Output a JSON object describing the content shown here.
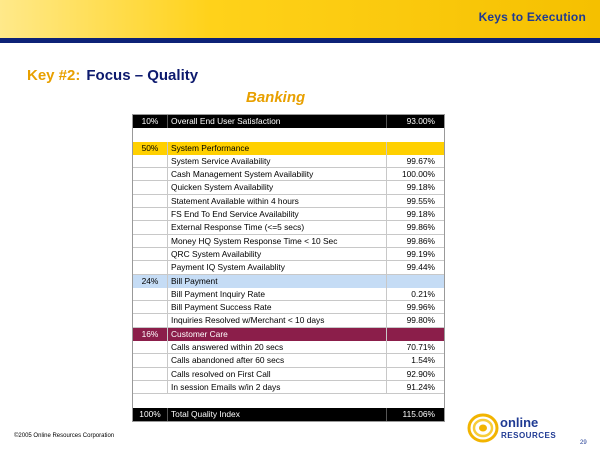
{
  "header": {
    "title": "Keys to Execution"
  },
  "heading": {
    "key": "Key #2:",
    "focus": "Focus – Quality"
  },
  "subheading": "Banking",
  "rows": [
    {
      "type": "dark",
      "weight": "10%",
      "label": "Overall End User Satisfaction",
      "value": "93.00%"
    },
    {
      "type": "blank",
      "weight": "",
      "label": "",
      "value": ""
    },
    {
      "type": "sp",
      "weight": "50%",
      "label": "System Performance",
      "value": ""
    },
    {
      "type": "item",
      "weight": "",
      "label": "System Service Availability",
      "value": "99.67%"
    },
    {
      "type": "item",
      "weight": "",
      "label": "Cash Management System Availability",
      "value": "100.00%"
    },
    {
      "type": "item",
      "weight": "",
      "label": "Quicken System Availability",
      "value": "99.18%"
    },
    {
      "type": "item",
      "weight": "",
      "label": "Statement Available within 4 hours",
      "value": "99.55%"
    },
    {
      "type": "item",
      "weight": "",
      "label": "FS End To End Service Availability",
      "value": "99.18%"
    },
    {
      "type": "item",
      "weight": "",
      "label": "External Response Time (<=5 secs)",
      "value": "99.86%"
    },
    {
      "type": "item",
      "weight": "",
      "label": "Money HQ System Response Time < 10 Sec",
      "value": "99.86%"
    },
    {
      "type": "item",
      "weight": "",
      "label": "QRC System Availability",
      "value": "99.19%"
    },
    {
      "type": "item",
      "weight": "",
      "label": "Payment IQ System Availablity",
      "value": "99.44%"
    },
    {
      "type": "bp",
      "weight": "24%",
      "label": "Bill Payment",
      "value": ""
    },
    {
      "type": "item",
      "weight": "",
      "label": "Bill Payment Inquiry Rate",
      "value": "0.21%"
    },
    {
      "type": "item",
      "weight": "",
      "label": "Bill Payment Success Rate",
      "value": "99.96%"
    },
    {
      "type": "item",
      "weight": "",
      "label": "Inquiries Resolved w/Merchant < 10 days",
      "value": "99.80%"
    },
    {
      "type": "cc",
      "weight": "16%",
      "label": "Customer Care",
      "value": ""
    },
    {
      "type": "item",
      "weight": "",
      "label": "Calls answered within 20 secs",
      "value": "70.71%"
    },
    {
      "type": "item",
      "weight": "",
      "label": "Calls abandoned after 60 secs",
      "value": "1.54%"
    },
    {
      "type": "item",
      "weight": "",
      "label": "Calls resolved on First Call",
      "value": "92.90%"
    },
    {
      "type": "item",
      "weight": "",
      "label": "In session Emails w/in 2 days",
      "value": "91.24%"
    },
    {
      "type": "blank",
      "weight": "",
      "label": "",
      "value": ""
    },
    {
      "type": "dark",
      "weight": "100%",
      "label": "Total Quality Index",
      "value": "115.06%"
    }
  ],
  "footer": {
    "copyright": "©2005 Online Resources Corporation",
    "page_number": "29"
  },
  "logo": {
    "line1": "online",
    "line2": "RESOURCES"
  },
  "colors": {
    "yellow": "#ffd000",
    "navy": "#0d2277",
    "blue_band": "#c5dcf5",
    "maroon": "#8b1e4a",
    "orange": "#e8a000"
  }
}
